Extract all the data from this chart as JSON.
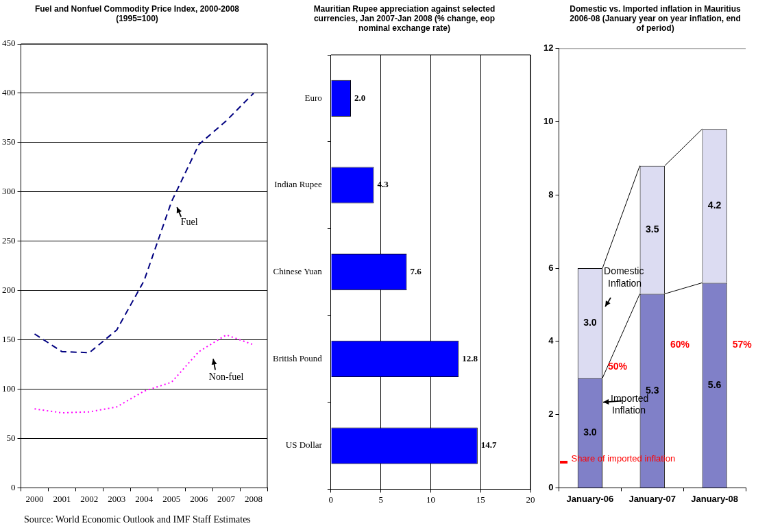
{
  "chart_data": [
    {
      "type": "line",
      "title": "Fuel and Nonfuel Commodity Price Index, 2000-2008 (1995=100)",
      "categories": [
        "2000",
        "2001",
        "2002",
        "2003",
        "2004",
        "2005",
        "2006",
        "2007",
        "2008"
      ],
      "series": [
        {
          "name": "Fuel",
          "color": "#000080",
          "line_style": "dashed",
          "values": [
            156,
            138,
            137,
            160,
            210,
            290,
            348,
            372,
            400
          ]
        },
        {
          "name": "Non-fuel",
          "color": "#ff00ff",
          "line_style": "dotted",
          "values": [
            80,
            76,
            77,
            82,
            98,
            107,
            138,
            155,
            145
          ]
        }
      ],
      "ylim": [
        0,
        450
      ],
      "yticks": [
        0,
        50,
        100,
        150,
        200,
        250,
        300,
        350,
        400,
        450
      ],
      "grid": "y",
      "legend": false,
      "marker": "none",
      "annotations": [
        "Source: World Economic Outlook and IMF Staff Estimates"
      ]
    },
    {
      "type": "bar",
      "orientation": "horizontal",
      "title": "Mauritian Rupee appreciation against selected currencies, Jan 2007-Jan 2008 (% change, eop nominal exchange rate)",
      "categories": [
        "Euro",
        "Indian Rupee",
        "Chinese Yuan",
        "British Pound",
        "US Dollar"
      ],
      "values": [
        2.0,
        4.3,
        7.6,
        12.8,
        14.7
      ],
      "value_labels": [
        "2.0",
        "4.3",
        "7.6",
        "12.8",
        "14.7"
      ],
      "color": "#0000ff",
      "xlim": [
        0,
        20
      ],
      "xticks": [
        0,
        5,
        10,
        15,
        20
      ],
      "grid": "x",
      "legend": false
    },
    {
      "type": "bar",
      "stacked": true,
      "title": "Domestic vs. Imported inflation in Mauritius 2006-08 (January year on year inflation, end of period)",
      "categories": [
        "January-06",
        "January-07",
        "January-08"
      ],
      "series": [
        {
          "name": "Imported Inflation",
          "color": "#8080c8",
          "values": [
            3.0,
            5.3,
            5.6
          ],
          "value_labels": [
            "3.0",
            "5.3",
            "5.6"
          ]
        },
        {
          "name": "Domestic Inflation",
          "color": "#dcdcf2",
          "values": [
            3.0,
            3.5,
            4.2
          ],
          "value_labels": [
            "3.0",
            "3.5",
            "4.2"
          ]
        }
      ],
      "ylim": [
        0,
        12
      ],
      "yticks": [
        0,
        2,
        4,
        6,
        8,
        10,
        12
      ],
      "grid": false,
      "legend": false,
      "annotations": [
        "50%",
        "60%",
        "57%",
        "Share of imported inflation"
      ]
    }
  ]
}
